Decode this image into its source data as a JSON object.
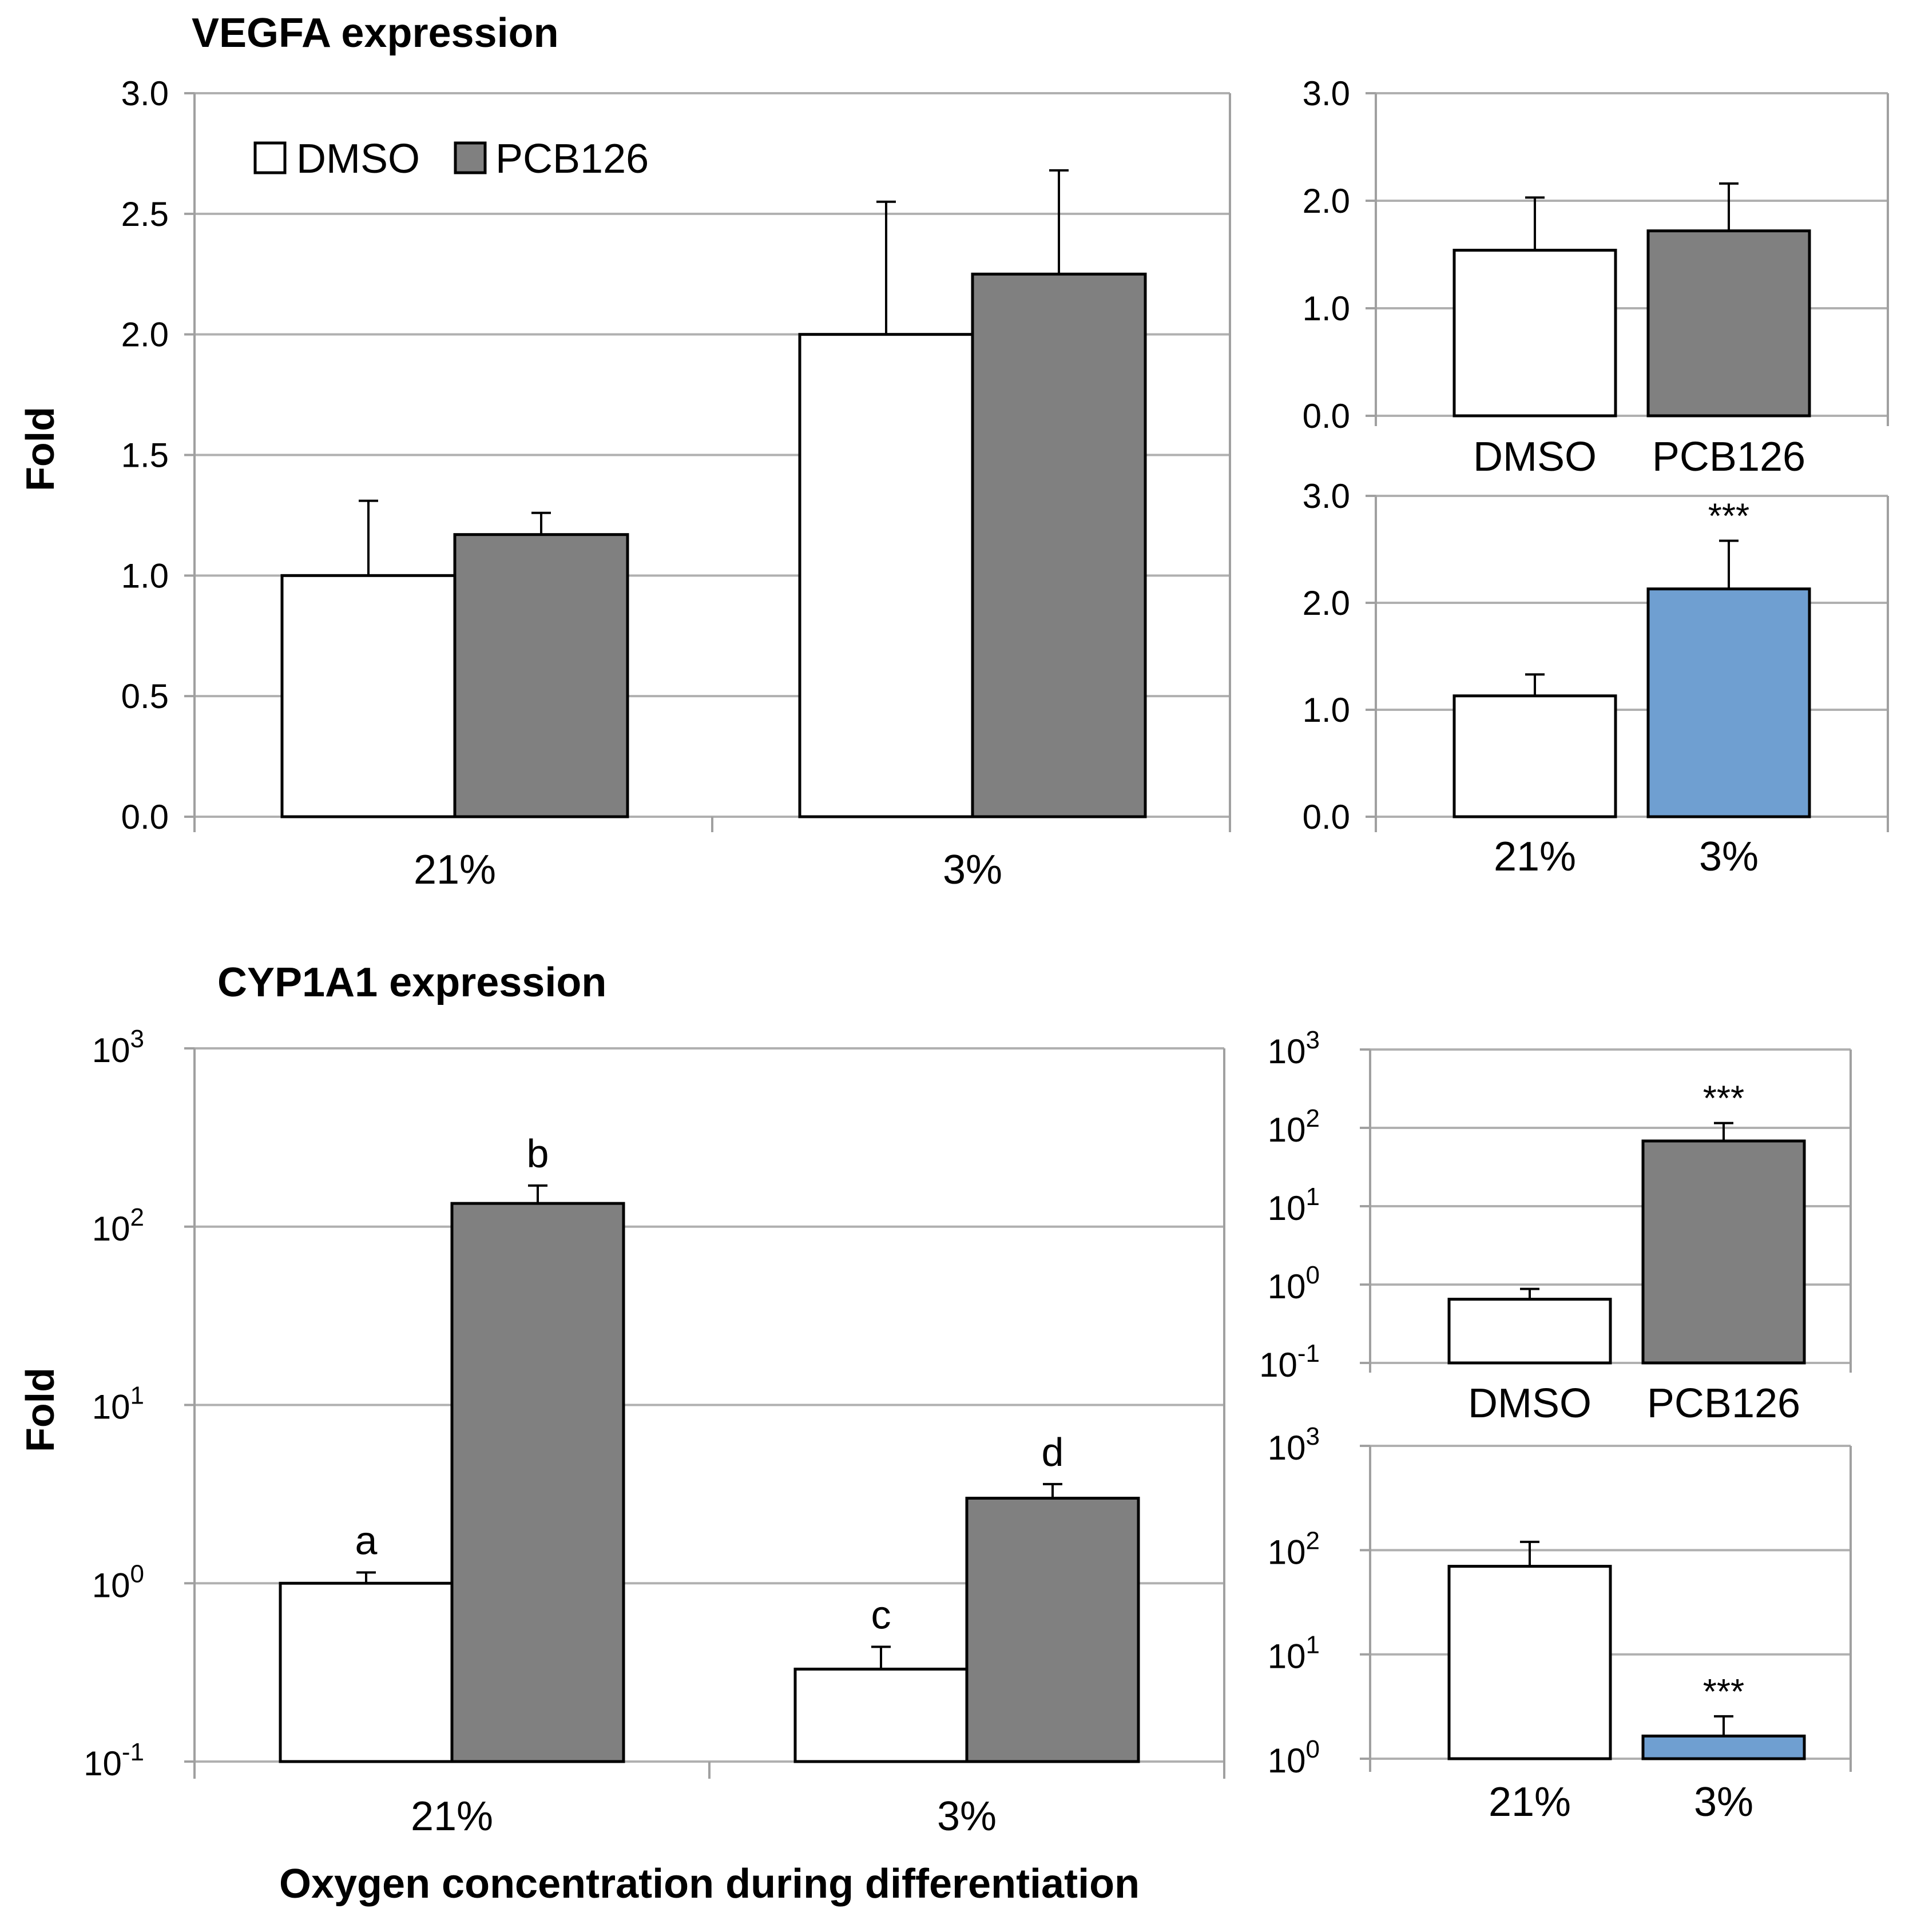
{
  "labels": {
    "vegfa_title": "VEGFA expression",
    "cyp_title": "CYP1A1 expression",
    "y_label": "Fold",
    "x_label": "Oxygen concentration during differentiation"
  },
  "colors": {
    "dmso": "#ffffff",
    "pcb": "#808080",
    "hypoxia": "#6f9fd1",
    "grid": "#b0b0b0",
    "axis": "#a0a0a0",
    "bar_edge": "#000000"
  },
  "chart_data": [
    {
      "id": "vegfa-main",
      "type": "bar",
      "scale": "linear",
      "title": "VEGFA expression",
      "ylabel": "Fold",
      "ylim": [
        0,
        3
      ],
      "yticks": [
        0,
        0.5,
        1,
        1.5,
        2,
        2.5,
        3
      ],
      "ytick_labels": [
        "0.0",
        "0.5",
        "1.0",
        "1.5",
        "2.0",
        "2.5",
        "3.0"
      ],
      "categories": [
        "21%",
        "3%"
      ],
      "legend": {
        "position": "top-left",
        "entries": [
          "DMSO",
          "PCB126"
        ]
      },
      "series": [
        {
          "name": "DMSO",
          "color": "#ffffff",
          "values": [
            1.0,
            2.0
          ],
          "errors": [
            0.31,
            0.55
          ]
        },
        {
          "name": "PCB126",
          "color": "#808080",
          "values": [
            1.17,
            2.25
          ],
          "errors": [
            0.09,
            0.43
          ]
        }
      ]
    },
    {
      "id": "vegfa-treatment",
      "type": "bar",
      "scale": "linear",
      "ylim": [
        0,
        3
      ],
      "yticks": [
        0,
        1,
        2,
        3
      ],
      "ytick_labels": [
        "0.0",
        "1.0",
        "2.0",
        "3.0"
      ],
      "categories": [
        "DMSO",
        "PCB126"
      ],
      "series": [
        {
          "name": "Fold",
          "colors": [
            "#ffffff",
            "#808080"
          ],
          "values": [
            1.54,
            1.72
          ],
          "errors": [
            0.49,
            0.44
          ],
          "annotations": [
            "",
            ""
          ]
        }
      ]
    },
    {
      "id": "vegfa-oxygen",
      "type": "bar",
      "scale": "linear",
      "ylim": [
        0,
        3
      ],
      "yticks": [
        0,
        1,
        2,
        3
      ],
      "ytick_labels": [
        "0.0",
        "1.0",
        "2.0",
        "3.0"
      ],
      "categories": [
        "21%",
        "3%"
      ],
      "series": [
        {
          "name": "Fold",
          "colors": [
            "#ffffff",
            "#6f9fd1"
          ],
          "values": [
            1.13,
            2.13
          ],
          "errors": [
            0.2,
            0.45
          ],
          "annotations": [
            "",
            "***"
          ]
        }
      ]
    },
    {
      "id": "cyp-main",
      "type": "bar",
      "scale": "log",
      "title": "CYP1A1 expression",
      "ylabel": "Fold",
      "xlabel": "Oxygen concentration during differentiation",
      "ylim_exp": [
        -1,
        3
      ],
      "ytick_exps": [
        "-1",
        "0",
        "1",
        "2",
        "3"
      ],
      "categories": [
        "21%",
        "3%"
      ],
      "series": [
        {
          "name": "DMSO",
          "color": "#ffffff",
          "values": [
            1.0,
            0.33
          ],
          "error_tops": [
            1.15,
            0.44
          ],
          "annotations": [
            "a",
            "c"
          ]
        },
        {
          "name": "PCB126",
          "color": "#808080",
          "values": [
            135,
            3.0
          ],
          "error_tops": [
            170,
            3.6
          ],
          "annotations": [
            "b",
            "d"
          ]
        }
      ]
    },
    {
      "id": "cyp-treatment",
      "type": "bar",
      "scale": "log",
      "ylim_exp": [
        -1,
        3
      ],
      "ytick_exps": [
        "-1",
        "0",
        "1",
        "2",
        "3"
      ],
      "categories": [
        "DMSO",
        "PCB126"
      ],
      "series": [
        {
          "name": "Fold",
          "colors": [
            "#ffffff",
            "#808080"
          ],
          "values": [
            0.65,
            68
          ],
          "error_tops": [
            0.88,
            115
          ],
          "annotations": [
            "",
            "***"
          ]
        }
      ]
    },
    {
      "id": "cyp-oxygen",
      "type": "bar",
      "scale": "log",
      "ylim_exp": [
        0,
        3
      ],
      "ytick_exps": [
        "0",
        "1",
        "2",
        "3"
      ],
      "categories": [
        "21%",
        "3%"
      ],
      "series": [
        {
          "name": "Fold",
          "colors": [
            "#ffffff",
            "#6f9fd1"
          ],
          "values": [
            70,
            1.65
          ],
          "error_tops": [
            120,
            2.55
          ],
          "annotations": [
            "",
            "***"
          ]
        }
      ]
    }
  ]
}
